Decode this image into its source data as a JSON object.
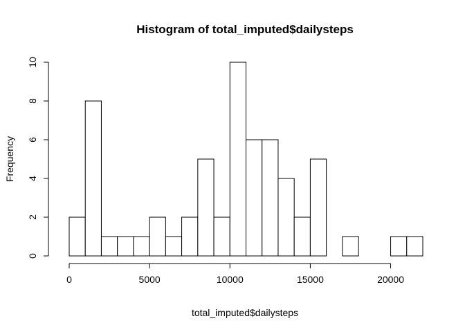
{
  "chart_data": {
    "type": "bar",
    "title": "Histogram of total_imputed$dailysteps",
    "xlabel": "total_imputed$dailysteps",
    "ylabel": "Frequency",
    "bin_width": 1000,
    "bins": [
      {
        "start": 0,
        "end": 1000,
        "count": 2
      },
      {
        "start": 1000,
        "end": 2000,
        "count": 8
      },
      {
        "start": 2000,
        "end": 3000,
        "count": 1
      },
      {
        "start": 3000,
        "end": 4000,
        "count": 1
      },
      {
        "start": 4000,
        "end": 5000,
        "count": 1
      },
      {
        "start": 5000,
        "end": 6000,
        "count": 2
      },
      {
        "start": 6000,
        "end": 7000,
        "count": 1
      },
      {
        "start": 7000,
        "end": 8000,
        "count": 2
      },
      {
        "start": 8000,
        "end": 9000,
        "count": 5
      },
      {
        "start": 9000,
        "end": 10000,
        "count": 2
      },
      {
        "start": 10000,
        "end": 11000,
        "count": 10
      },
      {
        "start": 11000,
        "end": 12000,
        "count": 6
      },
      {
        "start": 12000,
        "end": 13000,
        "count": 6
      },
      {
        "start": 13000,
        "end": 14000,
        "count": 4
      },
      {
        "start": 14000,
        "end": 15000,
        "count": 2
      },
      {
        "start": 15000,
        "end": 16000,
        "count": 5
      },
      {
        "start": 16000,
        "end": 17000,
        "count": 0
      },
      {
        "start": 17000,
        "end": 18000,
        "count": 1
      },
      {
        "start": 18000,
        "end": 19000,
        "count": 0
      },
      {
        "start": 19000,
        "end": 20000,
        "count": 0
      },
      {
        "start": 20000,
        "end": 21000,
        "count": 1
      },
      {
        "start": 21000,
        "end": 22000,
        "count": 1
      }
    ],
    "x_ticks": [
      0,
      5000,
      10000,
      15000,
      20000
    ],
    "x_tick_labels": [
      "0",
      "5000",
      "10000",
      "15000",
      "20000"
    ],
    "y_ticks": [
      0,
      2,
      4,
      6,
      8,
      10
    ],
    "y_tick_labels": [
      "0",
      "2",
      "4",
      "6",
      "8",
      "10"
    ],
    "xlim": [
      0,
      22000
    ],
    "ylim": [
      0,
      10
    ],
    "grid": false,
    "legend": "none"
  }
}
